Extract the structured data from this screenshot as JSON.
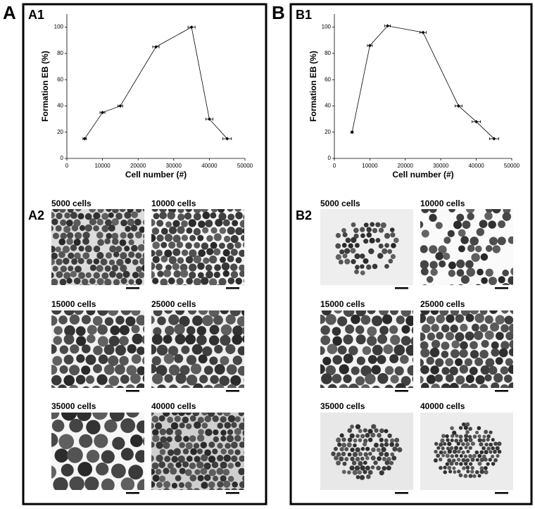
{
  "figure": {
    "panels": [
      {
        "label": "A",
        "chart_label": "A1",
        "images_label": "A2",
        "images": [
          "5000 cells",
          "10000 cells",
          "15000 cells",
          "25000 cells",
          "35000 cells",
          "40000 cells"
        ]
      },
      {
        "label": "B",
        "chart_label": "B1",
        "images_label": "B2",
        "images": [
          "5000 cells",
          "10000 cells",
          "15000 cells",
          "25000 cells",
          "35000 cells",
          "40000 cells"
        ]
      }
    ]
  },
  "chart_data": [
    {
      "type": "line",
      "xlabel": "Cell number (#)",
      "ylabel": "Formation EB (%)",
      "x": [
        5000,
        10000,
        15000,
        25000,
        35000,
        40000,
        45000
      ],
      "values": [
        15,
        35,
        40,
        85,
        100,
        30,
        15
      ],
      "xerr": [
        500,
        700,
        700,
        900,
        1000,
        1000,
        1200
      ],
      "color": "#000000",
      "xlim": [
        0,
        50000
      ],
      "xticks": [
        0,
        10000,
        20000,
        30000,
        40000,
        50000
      ],
      "ylim": [
        0,
        110
      ],
      "yticks": [
        0,
        20,
        40,
        60,
        80,
        100
      ],
      "grid": false
    },
    {
      "type": "line",
      "xlabel": "Cell number (#)",
      "ylabel": "Formation EB (%)",
      "x": [
        5000,
        10000,
        15000,
        25000,
        35000,
        40000,
        45000
      ],
      "values": [
        20,
        86,
        101,
        96,
        40,
        28,
        15
      ],
      "xerr": [
        300,
        700,
        800,
        900,
        1000,
        1200,
        1300
      ],
      "color": "#000000",
      "xlim": [
        0,
        50000
      ],
      "xticks": [
        0,
        10000,
        20000,
        30000,
        40000,
        50000
      ],
      "ylim": [
        0,
        110
      ],
      "yticks": [
        0,
        20,
        40,
        60,
        80,
        100
      ],
      "grid": false
    }
  ]
}
